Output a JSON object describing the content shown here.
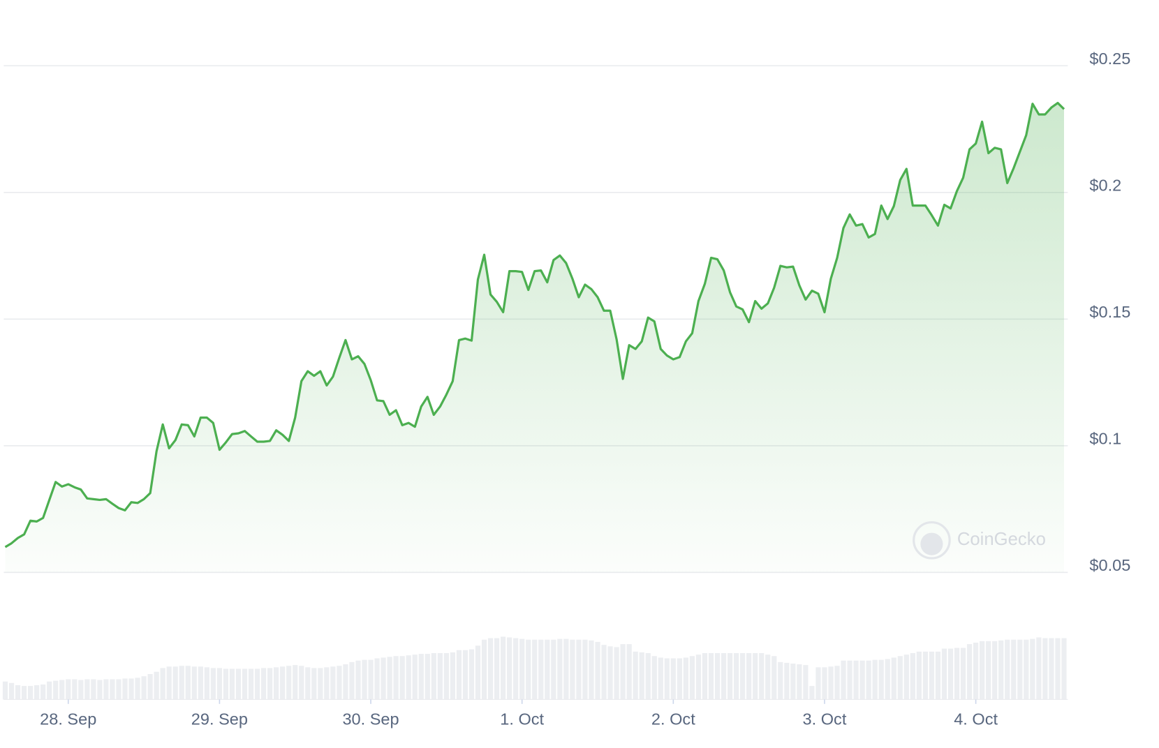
{
  "chart_data": {
    "type": "line",
    "series": [
      {
        "name": "Price",
        "color": "#4caf50",
        "values": [
          0.06,
          0.0615,
          0.0636,
          0.065,
          0.0704,
          0.0701,
          0.0715,
          0.0786,
          0.0857,
          0.0839,
          0.0848,
          0.0836,
          0.0827,
          0.0792,
          0.0789,
          0.0786,
          0.0789,
          0.0771,
          0.0754,
          0.0745,
          0.0777,
          0.0774,
          0.0789,
          0.0813,
          0.0978,
          0.1084,
          0.099,
          0.1022,
          0.1084,
          0.1081,
          0.1037,
          0.1111,
          0.1111,
          0.109,
          0.0984,
          0.1013,
          0.1046,
          0.1049,
          0.1058,
          0.1037,
          0.1016,
          0.1016,
          0.1019,
          0.1061,
          0.1043,
          0.1019,
          0.1111,
          0.1255,
          0.1294,
          0.1276,
          0.1294,
          0.1238,
          0.1273,
          0.1347,
          0.1417,
          0.1341,
          0.1353,
          0.1323,
          0.1258,
          0.1179,
          0.1176,
          0.1122,
          0.114,
          0.1081,
          0.109,
          0.1075,
          0.1155,
          0.1193,
          0.1122,
          0.1155,
          0.1202,
          0.1255,
          0.1417,
          0.1423,
          0.1415,
          0.1656,
          0.1754,
          0.1597,
          0.1568,
          0.1527,
          0.1689,
          0.1689,
          0.1686,
          0.1615,
          0.1689,
          0.1692,
          0.1645,
          0.1733,
          0.1751,
          0.1721,
          0.1659,
          0.1586,
          0.1636,
          0.1618,
          0.1586,
          0.1533,
          0.1533,
          0.142,
          0.1264,
          0.1397,
          0.1382,
          0.1412,
          0.1506,
          0.1491,
          0.1382,
          0.1356,
          0.1341,
          0.135,
          0.1412,
          0.1444,
          0.1571,
          0.1639,
          0.1742,
          0.1736,
          0.1692,
          0.1606,
          0.155,
          0.1538,
          0.1488,
          0.1571,
          0.1541,
          0.1562,
          0.1624,
          0.171,
          0.1704,
          0.1707,
          0.1633,
          0.1577,
          0.1612,
          0.16,
          0.1527,
          0.1659,
          0.1742,
          0.186,
          0.1913,
          0.1869,
          0.1875,
          0.1822,
          0.1836,
          0.1948,
          0.1895,
          0.1946,
          0.2049,
          0.2093,
          0.1948,
          0.1948,
          0.1948,
          0.191,
          0.1869,
          0.1951,
          0.1937,
          0.2005,
          0.2058,
          0.217,
          0.2193,
          0.2279,
          0.2155,
          0.2176,
          0.217,
          0.2037,
          0.2096,
          0.2161,
          0.2226,
          0.235,
          0.2308,
          0.2308,
          0.2335,
          0.2353,
          0.2329
        ]
      }
    ],
    "volume": {
      "color": "#eceef1",
      "ylim": [
        0,
        100
      ],
      "values": [
        24,
        22,
        19,
        18,
        18,
        19,
        20,
        24,
        25,
        26,
        27,
        27,
        26,
        27,
        27,
        26,
        27,
        27,
        27,
        28,
        28,
        29,
        31,
        34,
        37,
        42,
        44,
        44,
        45,
        45,
        44,
        44,
        43,
        42,
        42,
        41,
        41,
        41,
        41,
        41,
        41,
        42,
        42,
        43,
        44,
        45,
        46,
        45,
        43,
        42,
        42,
        43,
        44,
        45,
        47,
        50,
        52,
        53,
        53,
        55,
        56,
        57,
        58,
        58,
        59,
        60,
        61,
        61,
        62,
        62,
        62,
        63,
        66,
        66,
        67,
        72,
        80,
        82,
        82,
        84,
        83,
        82,
        81,
        80,
        80,
        80,
        80,
        80,
        81,
        81,
        80,
        80,
        80,
        79,
        77,
        73,
        71,
        70,
        74,
        74,
        64,
        63,
        62,
        58,
        56,
        55,
        55,
        55,
        56,
        58,
        60,
        62,
        62,
        62,
        62,
        62,
        62,
        62,
        62,
        62,
        62,
        60,
        58,
        50,
        49,
        48,
        47,
        46,
        18,
        43,
        43,
        44,
        45,
        52,
        52,
        52,
        52,
        52,
        53,
        53,
        54,
        56,
        58,
        60,
        62,
        64,
        64,
        64,
        64,
        68,
        68,
        69,
        69,
        74,
        76,
        78,
        78,
        78,
        79,
        80,
        80,
        80,
        80,
        81,
        83,
        82,
        82,
        82,
        82
      ]
    },
    "xlim": [
      0,
      168
    ],
    "xticks": [
      {
        "value": 10,
        "label": "28. Sep"
      },
      {
        "value": 34,
        "label": "29. Sep"
      },
      {
        "value": 58,
        "label": "30. Sep"
      },
      {
        "value": 82,
        "label": "1. Oct"
      },
      {
        "value": 106,
        "label": "2. Oct"
      },
      {
        "value": 130,
        "label": "3. Oct"
      },
      {
        "value": 154,
        "label": "4. Oct"
      }
    ],
    "ylim": [
      0.05,
      0.25
    ],
    "yticks": [
      {
        "value": 0.05,
        "label": "$0.05"
      },
      {
        "value": 0.1,
        "label": "$0.1"
      },
      {
        "value": 0.15,
        "label": "$0.15"
      },
      {
        "value": 0.2,
        "label": "$0.2"
      },
      {
        "value": 0.25,
        "label": "$0.25"
      }
    ],
    "grid": true,
    "watermark": "CoinGecko"
  }
}
